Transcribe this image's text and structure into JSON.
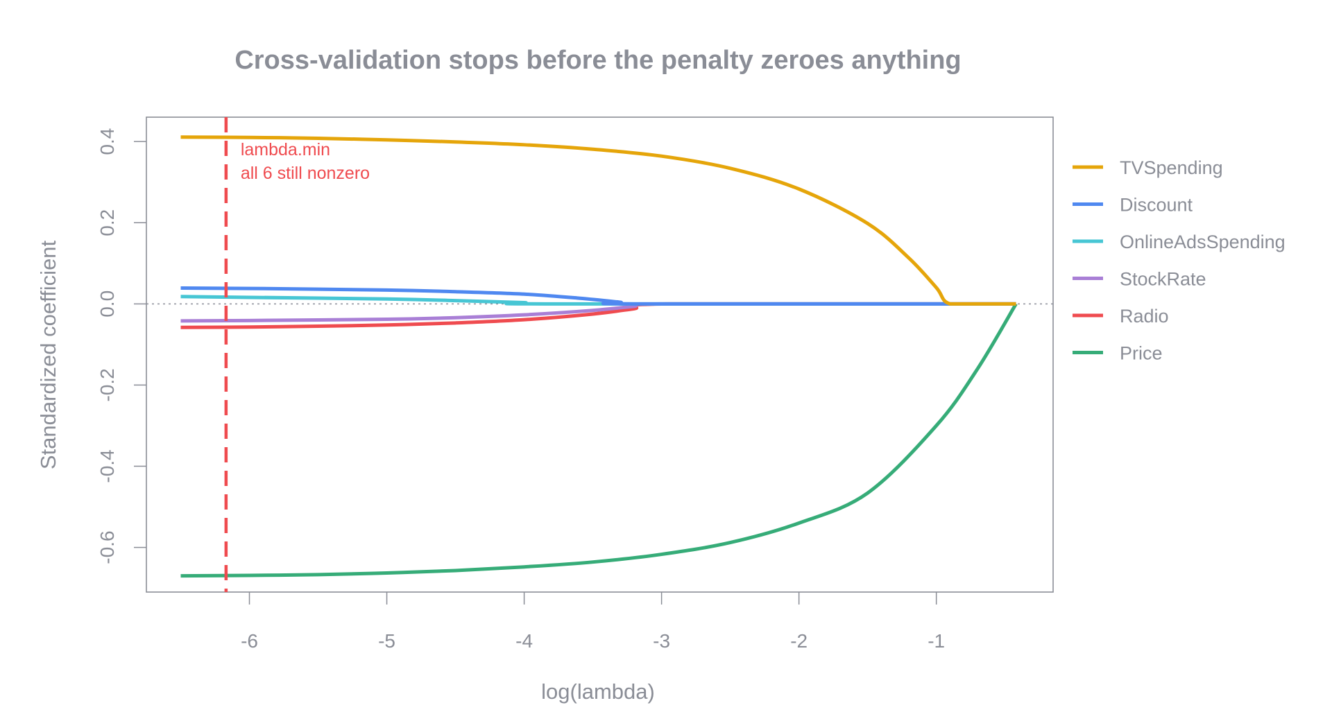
{
  "chart_data": {
    "type": "line",
    "title": "Cross-validation stops before the penalty zeroes anything",
    "xlabel": "log(lambda)",
    "ylabel": "Standardized coefficient",
    "xlim": [
      -6.75,
      -0.15
    ],
    "ylim": [
      -0.71,
      0.46
    ],
    "x_ticks": [
      -6,
      -5,
      -4,
      -3,
      -2,
      -1
    ],
    "x_tick_labels": [
      "-6",
      "-5",
      "-4",
      "-3",
      "-2",
      "-1"
    ],
    "y_ticks": [
      0.4,
      0.2,
      0.0,
      -0.2,
      -0.4,
      -0.6
    ],
    "y_tick_labels": [
      "0.4",
      "0.2",
      "0.0",
      "-0.2",
      "-0.4",
      "-0.6"
    ],
    "grid": false,
    "legend_position": "right",
    "zero_reference_line": true,
    "vline": {
      "x": -6.17,
      "color": "#ef4b4f",
      "style": "dashed",
      "label_lines": [
        "lambda.min",
        "all 6 still nonzero"
      ]
    },
    "series": [
      {
        "name": "TVSpending",
        "color": "#e5a50a",
        "points": [
          [
            -6.5,
            0.411
          ],
          [
            -6.0,
            0.41
          ],
          [
            -5.5,
            0.408
          ],
          [
            -5.0,
            0.404
          ],
          [
            -4.5,
            0.399
          ],
          [
            -4.0,
            0.392
          ],
          [
            -3.5,
            0.381
          ],
          [
            -3.0,
            0.364
          ],
          [
            -2.5,
            0.334
          ],
          [
            -2.0,
            0.283
          ],
          [
            -1.5,
            0.198
          ],
          [
            -1.2,
            0.113
          ],
          [
            -1.0,
            0.04
          ],
          [
            -0.9,
            0.0
          ],
          [
            -0.6,
            0.0
          ],
          [
            -0.42,
            0.0
          ]
        ]
      },
      {
        "name": "Discount",
        "color": "#4f88f0",
        "points": [
          [
            -6.5,
            0.039
          ],
          [
            -6.0,
            0.038
          ],
          [
            -5.0,
            0.034
          ],
          [
            -4.5,
            0.03
          ],
          [
            -4.0,
            0.024
          ],
          [
            -3.6,
            0.014
          ],
          [
            -3.3,
            0.004
          ],
          [
            -3.2,
            0.0
          ],
          [
            -0.42,
            0.0
          ]
        ]
      },
      {
        "name": "OnlineAdsSpending",
        "color": "#47c6d4",
        "points": [
          [
            -6.5,
            0.018
          ],
          [
            -6.0,
            0.016
          ],
          [
            -5.0,
            0.012
          ],
          [
            -4.5,
            0.008
          ],
          [
            -4.0,
            0.003
          ],
          [
            -3.85,
            0.0
          ],
          [
            -0.42,
            0.0
          ]
        ]
      },
      {
        "name": "StockRate",
        "color": "#a97fd6",
        "points": [
          [
            -6.5,
            -0.042
          ],
          [
            -6.0,
            -0.041
          ],
          [
            -5.0,
            -0.038
          ],
          [
            -4.5,
            -0.034
          ],
          [
            -4.0,
            -0.027
          ],
          [
            -3.5,
            -0.016
          ],
          [
            -3.2,
            -0.006
          ],
          [
            -3.0,
            0.0
          ],
          [
            -0.42,
            0.0
          ]
        ]
      },
      {
        "name": "Radio",
        "color": "#ef4b4f",
        "points": [
          [
            -6.5,
            -0.058
          ],
          [
            -6.0,
            -0.057
          ],
          [
            -5.5,
            -0.055
          ],
          [
            -5.0,
            -0.052
          ],
          [
            -4.5,
            -0.047
          ],
          [
            -4.0,
            -0.039
          ],
          [
            -3.5,
            -0.025
          ],
          [
            -3.2,
            -0.012
          ],
          [
            -2.95,
            0.0
          ],
          [
            -0.42,
            0.0
          ]
        ]
      },
      {
        "name": "Price",
        "color": "#36ac78",
        "points": [
          [
            -6.5,
            -0.67
          ],
          [
            -6.0,
            -0.669
          ],
          [
            -5.5,
            -0.667
          ],
          [
            -5.0,
            -0.663
          ],
          [
            -4.5,
            -0.657
          ],
          [
            -4.0,
            -0.648
          ],
          [
            -3.5,
            -0.636
          ],
          [
            -3.0,
            -0.617
          ],
          [
            -2.5,
            -0.588
          ],
          [
            -2.0,
            -0.54
          ],
          [
            -1.5,
            -0.466
          ],
          [
            -1.0,
            -0.3
          ],
          [
            -0.7,
            -0.16
          ],
          [
            -0.42,
            0.0
          ]
        ]
      }
    ]
  }
}
